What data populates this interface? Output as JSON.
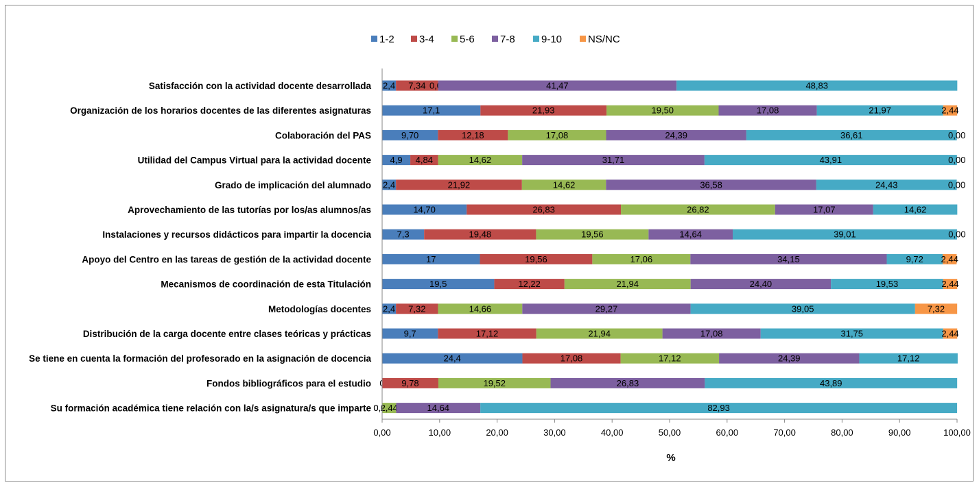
{
  "chart_data": {
    "type": "bar",
    "orientation": "horizontal",
    "stacked": true,
    "title": "",
    "xlabel": "%",
    "ylabel": "",
    "xlim": [
      0,
      100
    ],
    "x_ticks": [
      "0,00",
      "10,00",
      "20,00",
      "30,00",
      "40,00",
      "50,00",
      "60,00",
      "70,00",
      "80,00",
      "90,00",
      "100,00"
    ],
    "legend_position": "top",
    "grid": false,
    "categories": [
      "Satisfacción con la actividad docente desarrollada",
      "Organización de los horarios docentes de las diferentes asignaturas",
      "Colaboración del PAS",
      "Utilidad del Campus Virtual para la actividad docente",
      "Grado de implicación del alumnado",
      "Aprovechamiento de las tutorías por los/as alumnos/as",
      "Instalaciones y recursos didácticos para impartir la docencia",
      "Apoyo del Centro en las tareas de gestión de la actividad docente",
      "Mecanismos de coordinación de esta Titulación",
      "Metodologías docentes",
      "Distribución de la carga docente entre clases teóricas y prácticas",
      "Se tiene en cuenta la formación del profesorado en la asignación de docencia",
      "Fondos bibliográficos para el estudio",
      "Su formación académica tiene  relación  con  la/s asignatura/s que imparte"
    ],
    "series": [
      {
        "name": "1-2",
        "color": "#4a7ebb",
        "values": [
          2.4,
          17.1,
          9.7,
          4.9,
          2.4,
          14.7,
          7.3,
          17,
          19.5,
          2.4,
          9.7,
          24.4,
          0,
          0.0
        ],
        "labels": [
          "2,4",
          "17,1",
          "9,70",
          "4,9",
          "2,4",
          "14,70",
          "7,3",
          "17",
          "19,5",
          "2,4",
          "9,7",
          "24,4",
          "0",
          "0,00"
        ]
      },
      {
        "name": "3-4",
        "color": "#be4b48",
        "values": [
          7.34,
          21.93,
          12.18,
          4.84,
          21.92,
          26.83,
          19.48,
          19.56,
          12.22,
          7.32,
          17.12,
          17.08,
          9.78,
          0.0
        ],
        "labels": [
          "7,34",
          "21,93",
          "12,18",
          "4,84",
          "21,92",
          "26,83",
          "19,48",
          "19,56",
          "12,22",
          "7,32",
          "17,12",
          "17,08",
          "9,78",
          "0,00"
        ]
      },
      {
        "name": "5-6",
        "color": "#98b954",
        "values": [
          0.0,
          19.5,
          17.08,
          14.62,
          14.62,
          26.82,
          19.56,
          17.06,
          21.94,
          14.66,
          21.94,
          17.12,
          19.52,
          2.44
        ],
        "labels": [
          "0,00",
          "19,50",
          "17,08",
          "14,62",
          "14,62",
          "26,82",
          "19,56",
          "17,06",
          "21,94",
          "14,66",
          "21,94",
          "17,12",
          "19,52",
          "2,44"
        ]
      },
      {
        "name": "7-8",
        "color": "#7d60a0",
        "values": [
          41.47,
          17.08,
          24.39,
          31.71,
          36.58,
          17.07,
          14.64,
          34.15,
          24.4,
          29.27,
          17.08,
          24.39,
          26.83,
          14.64
        ],
        "labels": [
          "41,47",
          "17,08",
          "24,39",
          "31,71",
          "36,58",
          "17,07",
          "14,64",
          "34,15",
          "24,40",
          "29,27",
          "17,08",
          "24,39",
          "26,83",
          "14,64"
        ]
      },
      {
        "name": "9-10",
        "color": "#46aac5",
        "values": [
          48.83,
          21.97,
          36.61,
          43.91,
          24.43,
          14.62,
          39.01,
          9.72,
          19.53,
          39.05,
          31.75,
          17.12,
          43.89,
          82.93
        ],
        "labels": [
          "48,83",
          "21,97",
          "36,61",
          "43,91",
          "24,43",
          "14,62",
          "39,01",
          "9,72",
          "19,53",
          "39,05",
          "31,75",
          "17,12",
          "43,89",
          "82,93"
        ]
      },
      {
        "name": "NS/NC",
        "color": "#f79646",
        "values": [
          0,
          2.44,
          0.0,
          0.0,
          0.0,
          0,
          0.0,
          2.44,
          2.44,
          7.32,
          2.44,
          0,
          0,
          0
        ],
        "labels": [
          "",
          "2,44",
          "0,00",
          "0,00",
          "0,00",
          "",
          "0,00",
          "2,44",
          "2,44",
          "7,32",
          "2,44",
          "",
          "",
          ""
        ]
      }
    ]
  }
}
